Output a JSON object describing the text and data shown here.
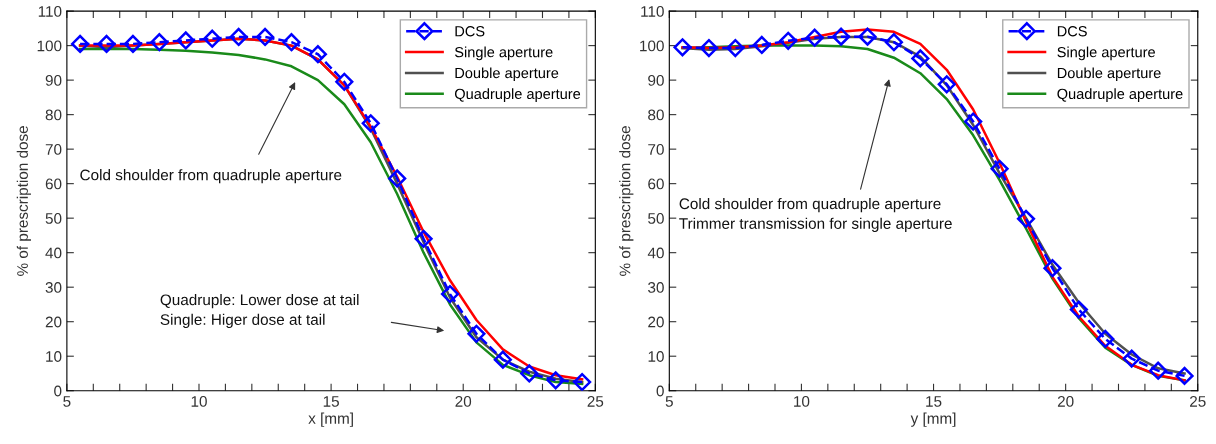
{
  "chart_data": [
    {
      "type": "line",
      "xlabel": "x [mm]",
      "ylabel": "% of prescription dose",
      "x": [
        5.5,
        6.5,
        7.5,
        8.5,
        9.5,
        10.5,
        11.5,
        12.5,
        13.5,
        14.5,
        15.5,
        16.5,
        17.5,
        18.5,
        19.5,
        20.5,
        21.5,
        22.5,
        23.5,
        24.5
      ],
      "series": [
        {
          "name": "DCS",
          "color": "#0000ff",
          "marker": "diamond",
          "line_style": "dashed",
          "values": [
            100.5,
            100.5,
            100.5,
            101,
            101.5,
            102,
            102.5,
            102.5,
            101,
            97.5,
            89.5,
            77.5,
            61.5,
            44,
            28,
            16.5,
            9,
            5,
            3,
            2.5
          ]
        },
        {
          "name": "Single aperture",
          "color": "#ff0000",
          "values": [
            100,
            100,
            100,
            100.5,
            101,
            101.5,
            102,
            101.5,
            100,
            96,
            88.5,
            76.5,
            62,
            46,
            32,
            20.5,
            12,
            7,
            4.5,
            3.3
          ]
        },
        {
          "name": "Double aperture",
          "color": "#505050",
          "values": [
            100,
            99.5,
            100,
            100.5,
            101,
            101.5,
            102,
            101.5,
            100,
            96,
            88.5,
            76,
            60,
            43,
            27,
            15.5,
            9,
            5.5,
            3.5,
            2.5
          ]
        },
        {
          "name": "Quadruple aperture",
          "color": "#1a8a1a",
          "values": [
            99,
            99,
            99,
            98.8,
            98.5,
            98,
            97.3,
            96,
            94,
            90,
            83,
            72,
            57,
            40,
            25,
            14,
            7.5,
            4.5,
            2.5,
            2
          ]
        }
      ],
      "xlim": [
        5,
        25
      ],
      "ylim": [
        0,
        110
      ],
      "xticks": [
        5,
        {
          "value": 6,
          "label": null
        },
        {
          "value": 7,
          "label": null
        },
        {
          "value": 8,
          "label": null
        },
        {
          "value": 9,
          "label": null
        },
        10,
        {
          "value": 11,
          "label": null
        },
        {
          "value": 12,
          "label": null
        },
        {
          "value": 13,
          "label": null
        },
        {
          "value": 14,
          "label": null
        },
        15,
        {
          "value": 16,
          "label": null
        },
        {
          "value": 17,
          "label": null
        },
        {
          "value": 18,
          "label": null
        },
        {
          "value": 19,
          "label": null
        },
        20,
        {
          "value": 21,
          "label": null
        },
        {
          "value": 22,
          "label": null
        },
        {
          "value": 23,
          "label": null
        },
        {
          "value": 24,
          "label": null
        },
        25
      ],
      "yticks": [
        0,
        10,
        20,
        30,
        40,
        50,
        60,
        70,
        80,
        90,
        100,
        110
      ],
      "legend": "top right",
      "annotations": [
        "Cold shoulder from quadruple aperture",
        "Quadruple: Lower dose at tail\nSingle: Higer dose at tail"
      ]
    },
    {
      "type": "line",
      "xlabel": "y [mm]",
      "ylabel": "% of prescription dose",
      "x": [
        5.5,
        6.5,
        7.5,
        8.5,
        9.5,
        10.5,
        11.5,
        12.5,
        13.5,
        14.5,
        15.5,
        16.5,
        17.5,
        18.5,
        19.5,
        20.5,
        21.5,
        22.5,
        23.5,
        24.5
      ],
      "series": [
        {
          "name": "DCS",
          "color": "#0000ff",
          "marker": "diamond",
          "line_style": "dashed",
          "values": [
            99.5,
            99.3,
            99.3,
            100.2,
            101.4,
            102.3,
            102.6,
            102.6,
            101,
            96.3,
            88.8,
            78,
            64.3,
            49.8,
            35.5,
            23.5,
            15,
            9.3,
            5.8,
            4.3
          ]
        },
        {
          "name": "Single aperture",
          "color": "#ff0000",
          "values": [
            99.5,
            99.3,
            99.5,
            100,
            101,
            102.5,
            104,
            104.7,
            104,
            100.5,
            93,
            81.5,
            66,
            49,
            33,
            21.5,
            13,
            7.5,
            4.5,
            3
          ]
        },
        {
          "name": "Double aperture",
          "color": "#505050",
          "values": [
            99.3,
            98.8,
            99,
            99.8,
            100.8,
            102,
            102.5,
            102.5,
            101,
            96.8,
            88.5,
            77,
            63,
            50,
            36.5,
            25.5,
            16.5,
            10.5,
            6.5,
            5
          ]
        },
        {
          "name": "Quadruple aperture",
          "color": "#1a8a1a",
          "values": [
            99.3,
            99.5,
            99.8,
            100,
            100,
            100,
            99.8,
            99,
            96.5,
            92,
            84.5,
            74,
            61,
            47,
            32.5,
            21,
            12.5,
            7.5,
            4.3,
            3
          ]
        }
      ],
      "xlim": [
        5,
        25
      ],
      "ylim": [
        0,
        110
      ],
      "xticks": [
        5,
        {
          "value": 6,
          "label": null
        },
        {
          "value": 7,
          "label": null
        },
        {
          "value": 8,
          "label": null
        },
        {
          "value": 9,
          "label": null
        },
        10,
        {
          "value": 11,
          "label": null
        },
        {
          "value": 12,
          "label": null
        },
        {
          "value": 13,
          "label": null
        },
        {
          "value": 14,
          "label": null
        },
        15,
        {
          "value": 16,
          "label": null
        },
        {
          "value": 17,
          "label": null
        },
        {
          "value": 18,
          "label": null
        },
        {
          "value": 19,
          "label": null
        },
        20,
        {
          "value": 21,
          "label": null
        },
        {
          "value": 22,
          "label": null
        },
        {
          "value": 23,
          "label": null
        },
        {
          "value": 24,
          "label": null
        },
        25
      ],
      "yticks": [
        0,
        10,
        20,
        30,
        40,
        50,
        60,
        70,
        80,
        90,
        100,
        110
      ],
      "legend": "top right",
      "annotations": [
        "Cold shoulder from quadruple aperture\nTrimmer transmission for single aperture"
      ]
    }
  ]
}
